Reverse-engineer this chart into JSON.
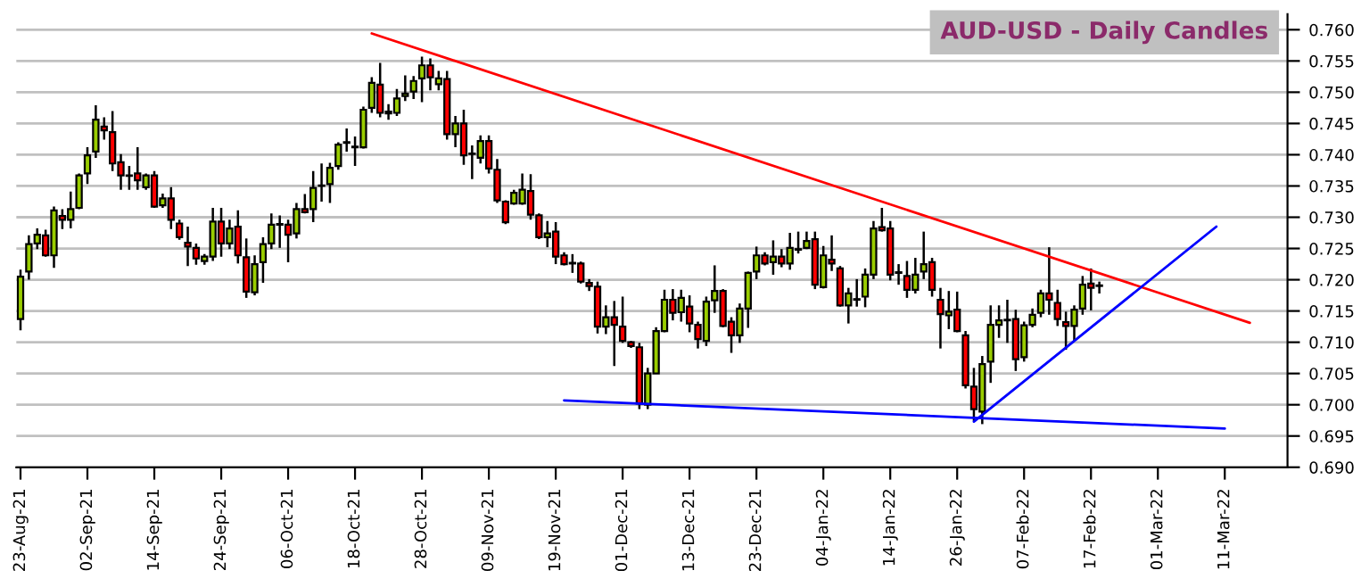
{
  "chart_data": {
    "type": "candlestick",
    "title": "AUD-USD - Daily Candles",
    "categories": [
      "23-Aug-21",
      null,
      null,
      null,
      null,
      null,
      null,
      null,
      "02-Sep-21",
      null,
      null,
      null,
      null,
      null,
      null,
      null,
      "14-Sep-21",
      null,
      null,
      null,
      null,
      null,
      null,
      null,
      "24-Sep-21",
      null,
      null,
      null,
      null,
      null,
      null,
      null,
      "06-Oct-21",
      null,
      null,
      null,
      null,
      null,
      null,
      null,
      "18-Oct-21",
      null,
      null,
      null,
      null,
      null,
      null,
      null,
      "28-Oct-21",
      null,
      null,
      null,
      null,
      null,
      null,
      null,
      "09-Nov-21",
      null,
      null,
      null,
      null,
      null,
      null,
      null,
      "19-Nov-21",
      null,
      null,
      null,
      null,
      null,
      null,
      null,
      "01-Dec-21",
      null,
      null,
      null,
      null,
      null,
      null,
      null,
      "13-Dec-21",
      null,
      null,
      null,
      null,
      null,
      null,
      null,
      "23-Dec-21",
      null,
      null,
      null,
      null,
      null,
      null,
      null,
      "04-Jan-22",
      null,
      null,
      null,
      null,
      null,
      null,
      null,
      "14-Jan-22",
      null,
      null,
      null,
      null,
      null,
      null,
      null,
      "26-Jan-22",
      null,
      null,
      null,
      null,
      null,
      null,
      null,
      "07-Feb-22",
      null,
      null,
      null,
      null,
      null,
      null,
      null,
      "17-Feb-22",
      null,
      null,
      null,
      null,
      null,
      null,
      null,
      "01-Mar-22",
      null,
      null,
      null,
      null,
      null,
      null,
      null,
      "11-Mar-22",
      null,
      null,
      null,
      null,
      null,
      null,
      null
    ],
    "ohlc": [
      [
        0.7137,
        0.7216,
        0.7119,
        0.7205
      ],
      [
        0.7213,
        0.7271,
        0.72,
        0.7257
      ],
      [
        0.7258,
        0.7282,
        0.7249,
        0.7272
      ],
      [
        0.7271,
        0.728,
        0.7237,
        0.7239
      ],
      [
        0.7239,
        0.7317,
        0.7219,
        0.7311
      ],
      [
        0.7302,
        0.7313,
        0.7281,
        0.7296
      ],
      [
        0.7296,
        0.7341,
        0.7282,
        0.7313
      ],
      [
        0.7315,
        0.737,
        0.7313,
        0.7367
      ],
      [
        0.737,
        0.7412,
        0.7353,
        0.7399
      ],
      [
        0.7405,
        0.7479,
        0.7395,
        0.7456
      ],
      [
        0.7445,
        0.746,
        0.7424,
        0.7439
      ],
      [
        0.7436,
        0.747,
        0.7374,
        0.7386
      ],
      [
        0.7388,
        0.7401,
        0.7344,
        0.7367
      ],
      [
        0.7367,
        0.7382,
        0.7344,
        0.7366
      ],
      [
        0.737,
        0.7412,
        0.7344,
        0.7359
      ],
      [
        0.7348,
        0.737,
        0.7344,
        0.7367
      ],
      [
        0.7367,
        0.7374,
        0.7315,
        0.7317
      ],
      [
        0.7319,
        0.7338,
        0.7315,
        0.733
      ],
      [
        0.733,
        0.7348,
        0.7281,
        0.7296
      ],
      [
        0.729,
        0.7296,
        0.7264,
        0.7268
      ],
      [
        0.7259,
        0.7285,
        0.7222,
        0.7253
      ],
      [
        0.7251,
        0.7258,
        0.7224,
        0.7234
      ],
      [
        0.723,
        0.7241,
        0.7224,
        0.7237
      ],
      [
        0.7237,
        0.7315,
        0.723,
        0.7293
      ],
      [
        0.7293,
        0.7315,
        0.7237,
        0.7258
      ],
      [
        0.7258,
        0.7296,
        0.7249,
        0.7282
      ],
      [
        0.7285,
        0.7311,
        0.7226,
        0.7239
      ],
      [
        0.7236,
        0.7266,
        0.7171,
        0.7181
      ],
      [
        0.718,
        0.7239,
        0.7175,
        0.7225
      ],
      [
        0.7228,
        0.7268,
        0.7195,
        0.7257
      ],
      [
        0.7258,
        0.7306,
        0.7249,
        0.7288
      ],
      [
        0.7288,
        0.7303,
        0.7251,
        0.7289
      ],
      [
        0.7288,
        0.7296,
        0.7228,
        0.7272
      ],
      [
        0.7274,
        0.7323,
        0.7266,
        0.7313
      ],
      [
        0.7313,
        0.7337,
        0.7306,
        0.7308
      ],
      [
        0.7313,
        0.7374,
        0.7292,
        0.7347
      ],
      [
        0.735,
        0.7386,
        0.7325,
        0.7351
      ],
      [
        0.7353,
        0.7387,
        0.7323,
        0.7379
      ],
      [
        0.7382,
        0.742,
        0.7376,
        0.7416
      ],
      [
        0.7419,
        0.7442,
        0.7405,
        0.742
      ],
      [
        0.7413,
        0.7429,
        0.7382,
        0.7412
      ],
      [
        0.7412,
        0.7477,
        0.741,
        0.7472
      ],
      [
        0.7475,
        0.7524,
        0.7467,
        0.7515
      ],
      [
        0.7512,
        0.7547,
        0.746,
        0.7467
      ],
      [
        0.7469,
        0.7481,
        0.7456,
        0.7466
      ],
      [
        0.7467,
        0.7505,
        0.7462,
        0.749
      ],
      [
        0.7494,
        0.7527,
        0.7486,
        0.7498
      ],
      [
        0.7501,
        0.7526,
        0.7489,
        0.7518
      ],
      [
        0.7522,
        0.7557,
        0.7484,
        0.7543
      ],
      [
        0.7543,
        0.7554,
        0.7503,
        0.7524
      ],
      [
        0.7513,
        0.7534,
        0.7503,
        0.7522
      ],
      [
        0.7521,
        0.7534,
        0.7424,
        0.7433
      ],
      [
        0.7433,
        0.7462,
        0.7412,
        0.745
      ],
      [
        0.745,
        0.7472,
        0.7384,
        0.7399
      ],
      [
        0.7401,
        0.7415,
        0.7361,
        0.7402
      ],
      [
        0.7395,
        0.7431,
        0.7386,
        0.7422
      ],
      [
        0.7422,
        0.7431,
        0.737,
        0.7378
      ],
      [
        0.7376,
        0.7393,
        0.7323,
        0.7327
      ],
      [
        0.7325,
        0.7327,
        0.7289,
        0.7292
      ],
      [
        0.7322,
        0.7344,
        0.732,
        0.7339
      ],
      [
        0.7322,
        0.737,
        0.732,
        0.7344
      ],
      [
        0.7342,
        0.7369,
        0.7296,
        0.7304
      ],
      [
        0.7303,
        0.7306,
        0.7265,
        0.7268
      ],
      [
        0.7268,
        0.7294,
        0.7252,
        0.7274
      ],
      [
        0.7277,
        0.7292,
        0.7225,
        0.7237
      ],
      [
        0.7239,
        0.7244,
        0.7223,
        0.7225
      ],
      [
        0.7226,
        0.7241,
        0.7211,
        0.7227
      ],
      [
        0.7226,
        0.7229,
        0.7194,
        0.7197
      ],
      [
        0.7195,
        0.7201,
        0.7182,
        0.719
      ],
      [
        0.7189,
        0.7197,
        0.7114,
        0.7125
      ],
      [
        0.7125,
        0.7159,
        0.7113,
        0.714
      ],
      [
        0.714,
        0.7166,
        0.7062,
        0.7128
      ],
      [
        0.7125,
        0.7173,
        0.7099,
        0.7102
      ],
      [
        0.71,
        0.7102,
        0.7091,
        0.7094
      ],
      [
        0.7092,
        0.7099,
        0.6993,
        0.7002
      ],
      [
        0.7,
        0.7059,
        0.6993,
        0.705
      ],
      [
        0.705,
        0.7124,
        0.705,
        0.7118
      ],
      [
        0.7118,
        0.7184,
        0.7116,
        0.7168
      ],
      [
        0.7168,
        0.7185,
        0.7135,
        0.7147
      ],
      [
        0.7148,
        0.7184,
        0.7133,
        0.7171
      ],
      [
        0.7157,
        0.7175,
        0.7116,
        0.713
      ],
      [
        0.7128,
        0.7133,
        0.709,
        0.7105
      ],
      [
        0.7102,
        0.7173,
        0.7094,
        0.7165
      ],
      [
        0.7167,
        0.7223,
        0.7147,
        0.7182
      ],
      [
        0.7182,
        0.7185,
        0.7124,
        0.7126
      ],
      [
        0.7133,
        0.714,
        0.7083,
        0.7111
      ],
      [
        0.7111,
        0.7162,
        0.7099,
        0.7154
      ],
      [
        0.7154,
        0.7213,
        0.7123,
        0.7211
      ],
      [
        0.7213,
        0.7253,
        0.7201,
        0.7239
      ],
      [
        0.7239,
        0.7244,
        0.7223,
        0.7226
      ],
      [
        0.7228,
        0.7263,
        0.7208,
        0.7237
      ],
      [
        0.7237,
        0.7249,
        0.722,
        0.7226
      ],
      [
        0.7226,
        0.7275,
        0.7216,
        0.7251
      ],
      [
        0.7248,
        0.7277,
        0.7242,
        0.7249
      ],
      [
        0.7251,
        0.7277,
        0.7249,
        0.7262
      ],
      [
        0.7265,
        0.7277,
        0.7185,
        0.7192
      ],
      [
        0.7188,
        0.7254,
        0.7186,
        0.7239
      ],
      [
        0.7232,
        0.7271,
        0.7214,
        0.7226
      ],
      [
        0.7218,
        0.7222,
        0.7157,
        0.7159
      ],
      [
        0.7159,
        0.7187,
        0.713,
        0.7178
      ],
      [
        0.7168,
        0.7201,
        0.7157,
        0.7169
      ],
      [
        0.7173,
        0.7218,
        0.7156,
        0.7208
      ],
      [
        0.7208,
        0.7294,
        0.7201,
        0.7282
      ],
      [
        0.7284,
        0.7315,
        0.7277,
        0.7279
      ],
      [
        0.7282,
        0.7294,
        0.7199,
        0.7208
      ],
      [
        0.7211,
        0.7225,
        0.7192,
        0.7212
      ],
      [
        0.7206,
        0.723,
        0.7171,
        0.7184
      ],
      [
        0.7184,
        0.7235,
        0.7178,
        0.7208
      ],
      [
        0.7213,
        0.7277,
        0.7201,
        0.7225
      ],
      [
        0.7228,
        0.7235,
        0.7173,
        0.7184
      ],
      [
        0.7168,
        0.7187,
        0.709,
        0.7145
      ],
      [
        0.7143,
        0.7182,
        0.7121,
        0.7149
      ],
      [
        0.7152,
        0.7181,
        0.7116,
        0.7118
      ],
      [
        0.7111,
        0.7118,
        0.7026,
        0.7031
      ],
      [
        0.7029,
        0.7059,
        0.6974,
        0.6993
      ],
      [
        0.6989,
        0.7078,
        0.6969,
        0.7065
      ],
      [
        0.7069,
        0.7159,
        0.7035,
        0.7128
      ],
      [
        0.7128,
        0.7159,
        0.7107,
        0.7135
      ],
      [
        0.7135,
        0.7168,
        0.7099,
        0.7136
      ],
      [
        0.7137,
        0.7152,
        0.7054,
        0.7073
      ],
      [
        0.7076,
        0.7133,
        0.7069,
        0.7127
      ],
      [
        0.7128,
        0.7154,
        0.7124,
        0.7144
      ],
      [
        0.7147,
        0.7184,
        0.714,
        0.7178
      ],
      [
        0.7178,
        0.7252,
        0.7144,
        0.7168
      ],
      [
        0.7163,
        0.7184,
        0.7126,
        0.7137
      ],
      [
        0.7132,
        0.7149,
        0.7088,
        0.7126
      ],
      [
        0.7126,
        0.7159,
        0.7102,
        0.7152
      ],
      [
        0.7154,
        0.7206,
        0.7144,
        0.7192
      ],
      [
        0.7194,
        0.7218,
        0.7151,
        0.7187
      ],
      [
        0.719,
        0.7197,
        0.7178,
        0.7191
      ],
      null,
      null,
      null,
      null,
      null,
      null,
      null,
      null,
      null,
      null,
      null,
      null,
      null,
      null,
      null,
      null,
      null,
      null,
      null,
      null,
      null,
      null
    ],
    "colors": [
      "#99cc00",
      "#99cc00",
      "#99cc00",
      "#ff0000",
      "#99cc00",
      "#ff0000",
      "#99cc00",
      "#99cc00",
      "#99cc00",
      "#99cc00",
      "#ff0000",
      "#ff0000",
      "#ff0000",
      "#ff0000",
      "#ff0000",
      "#99cc00",
      "#ff0000",
      "#99cc00",
      "#ff0000",
      "#ff0000",
      "#ff0000",
      "#ff0000",
      "#99cc00",
      "#99cc00",
      "#ff0000",
      "#99cc00",
      "#ff0000",
      "#ff0000",
      "#99cc00",
      "#99cc00",
      "#99cc00",
      "#99cc00",
      "#ff0000",
      "#99cc00",
      "#ff0000",
      "#99cc00",
      "#99cc00",
      "#99cc00",
      "#99cc00",
      "#99cc00",
      "#ff0000",
      "#99cc00",
      "#99cc00",
      "#ff0000",
      "#ff0000",
      "#99cc00",
      "#99cc00",
      "#99cc00",
      "#99cc00",
      "#ff0000",
      "#99cc00",
      "#ff0000",
      "#99cc00",
      "#ff0000",
      "#99cc00",
      "#99cc00",
      "#ff0000",
      "#ff0000",
      "#ff0000",
      "#99cc00",
      "#99cc00",
      "#ff0000",
      "#ff0000",
      "#99cc00",
      "#ff0000",
      "#ff0000",
      "#99cc00",
      "#ff0000",
      "#ff0000",
      "#ff0000",
      "#99cc00",
      "#ff0000",
      "#ff0000",
      "#ff0000",
      "#ff0000",
      "#99cc00",
      "#99cc00",
      "#99cc00",
      "#ff0000",
      "#99cc00",
      "#ff0000",
      "#ff0000",
      "#99cc00",
      "#99cc00",
      "#ff0000",
      "#ff0000",
      "#99cc00",
      "#99cc00",
      "#99cc00",
      "#ff0000",
      "#99cc00",
      "#ff0000",
      "#99cc00",
      "#99cc00",
      "#99cc00",
      "#ff0000",
      "#99cc00",
      "#ff0000",
      "#ff0000",
      "#99cc00",
      "#99cc00",
      "#99cc00",
      "#99cc00",
      "#ff0000",
      "#ff0000",
      "#99cc00",
      "#ff0000",
      "#99cc00",
      "#99cc00",
      "#ff0000",
      "#ff0000",
      "#99cc00",
      "#ff0000",
      "#ff0000",
      "#ff0000",
      "#99cc00",
      "#99cc00",
      "#99cc00",
      "#99cc00",
      "#ff0000",
      "#99cc00",
      "#99cc00",
      "#99cc00",
      "#ff0000",
      "#ff0000",
      "#ff0000",
      "#99cc00",
      "#99cc00",
      "#ff0000",
      "#99cc00",
      null,
      null,
      null,
      null,
      null,
      null,
      null,
      null,
      null,
      null,
      null,
      null,
      null,
      null,
      null,
      null,
      null,
      null,
      null,
      null,
      null,
      null
    ],
    "series": [
      {
        "type": "line",
        "color": "#ff0000",
        "values": [
          null,
          null,
          null,
          null,
          null,
          null,
          null,
          null,
          null,
          null,
          null,
          null,
          null,
          null,
          null,
          null,
          null,
          null,
          null,
          null,
          null,
          null,
          null,
          null,
          null,
          null,
          null,
          null,
          null,
          null,
          null,
          null,
          null,
          null,
          null,
          null,
          null,
          null,
          null,
          null,
          null,
          null,
          0.7594,
          null,
          null,
          null,
          null,
          null,
          null,
          null,
          null,
          null,
          null,
          null,
          null,
          null,
          null,
          null,
          null,
          null,
          null,
          null,
          null,
          null,
          null,
          null,
          null,
          null,
          null,
          null,
          null,
          null,
          null,
          null,
          null,
          null,
          null,
          null,
          null,
          null,
          null,
          null,
          null,
          null,
          null,
          null,
          null,
          null,
          null,
          null,
          null,
          null,
          null,
          null,
          null,
          null,
          null,
          null,
          null,
          null,
          null,
          null,
          null,
          null,
          null,
          null,
          null,
          null,
          null,
          null,
          null,
          null,
          null,
          null,
          null,
          null,
          null,
          null,
          null,
          null,
          null,
          null,
          null,
          null,
          null,
          null,
          null,
          null,
          null,
          null,
          null,
          null,
          null,
          null,
          null,
          null,
          null,
          null,
          null,
          null,
          null,
          null,
          null,
          null,
          null,
          null,
          null,
          0.7131,
          null,
          null,
          null,
          null
        ]
      },
      {
        "type": "line",
        "color": "#0000ff",
        "values": [
          null,
          null,
          null,
          null,
          null,
          null,
          null,
          null,
          null,
          null,
          null,
          null,
          null,
          null,
          null,
          null,
          null,
          null,
          null,
          null,
          null,
          null,
          null,
          null,
          null,
          null,
          null,
          null,
          null,
          null,
          null,
          null,
          null,
          null,
          null,
          null,
          null,
          null,
          null,
          null,
          null,
          null,
          null,
          null,
          null,
          null,
          null,
          null,
          null,
          null,
          null,
          null,
          null,
          null,
          null,
          null,
          null,
          null,
          null,
          null,
          null,
          null,
          null,
          null,
          null,
          0.7007,
          null,
          null,
          null,
          null,
          null,
          null,
          null,
          null,
          null,
          null,
          null,
          null,
          null,
          null,
          null,
          null,
          null,
          null,
          null,
          null,
          null,
          null,
          null,
          null,
          null,
          null,
          null,
          null,
          null,
          null,
          null,
          null,
          null,
          null,
          null,
          null,
          null,
          null,
          null,
          null,
          null,
          null,
          null,
          null,
          null,
          null,
          null,
          null,
          null,
          null,
          null,
          null,
          null,
          null,
          null,
          null,
          null,
          null,
          null,
          null,
          null,
          null,
          null,
          null,
          null,
          null,
          null,
          null,
          null,
          null,
          null,
          null,
          null,
          null,
          null,
          null,
          null,
          null,
          0.6962,
          null,
          null,
          null,
          null,
          null,
          null,
          null
        ]
      },
      {
        "type": "line",
        "color": "#0000ff",
        "values": [
          null,
          null,
          null,
          null,
          null,
          null,
          null,
          null,
          null,
          null,
          null,
          null,
          null,
          null,
          null,
          null,
          null,
          null,
          null,
          null,
          null,
          null,
          null,
          null,
          null,
          null,
          null,
          null,
          null,
          null,
          null,
          null,
          null,
          null,
          null,
          null,
          null,
          null,
          null,
          null,
          null,
          null,
          null,
          null,
          null,
          null,
          null,
          null,
          null,
          null,
          null,
          null,
          null,
          null,
          null,
          null,
          null,
          null,
          null,
          null,
          null,
          null,
          null,
          null,
          null,
          null,
          null,
          null,
          null,
          null,
          null,
          null,
          null,
          null,
          null,
          null,
          null,
          null,
          null,
          null,
          null,
          null,
          null,
          null,
          null,
          null,
          null,
          null,
          null,
          null,
          null,
          null,
          null,
          null,
          null,
          null,
          null,
          null,
          null,
          null,
          null,
          null,
          null,
          null,
          null,
          null,
          null,
          null,
          null,
          null,
          null,
          null,
          null,
          null,
          0.6973,
          null,
          null,
          null,
          null,
          null,
          null,
          null,
          null,
          null,
          null,
          null,
          null,
          null,
          null,
          null,
          null,
          null,
          null,
          null,
          null,
          null,
          null,
          null,
          null,
          null,
          null,
          null,
          null,
          0.7285,
          null,
          null,
          null,
          null,
          null,
          null,
          null,
          null
        ]
      }
    ],
    "ylim": [
      0.69,
      0.7625
    ],
    "yticks": [
      {
        "value": 0.69,
        "label": "0.690"
      },
      {
        "value": 0.695,
        "label": "0.695"
      },
      {
        "value": 0.7,
        "label": "0.700"
      },
      {
        "value": 0.705,
        "label": "0.705"
      },
      {
        "value": 0.71,
        "label": "0.710"
      },
      {
        "value": 0.715,
        "label": "0.715"
      },
      {
        "value": 0.72,
        "label": "0.720"
      },
      {
        "value": 0.725,
        "label": "0.725"
      },
      {
        "value": 0.73,
        "label": "0.730"
      },
      {
        "value": 0.735,
        "label": "0.735"
      },
      {
        "value": 0.74,
        "label": "0.740"
      },
      {
        "value": 0.745,
        "label": "0.745"
      },
      {
        "value": 0.75,
        "label": "0.750"
      },
      {
        "value": 0.755,
        "label": "0.755"
      },
      {
        "value": 0.76,
        "label": "0.760"
      }
    ],
    "grid": "y",
    "legend": false
  }
}
